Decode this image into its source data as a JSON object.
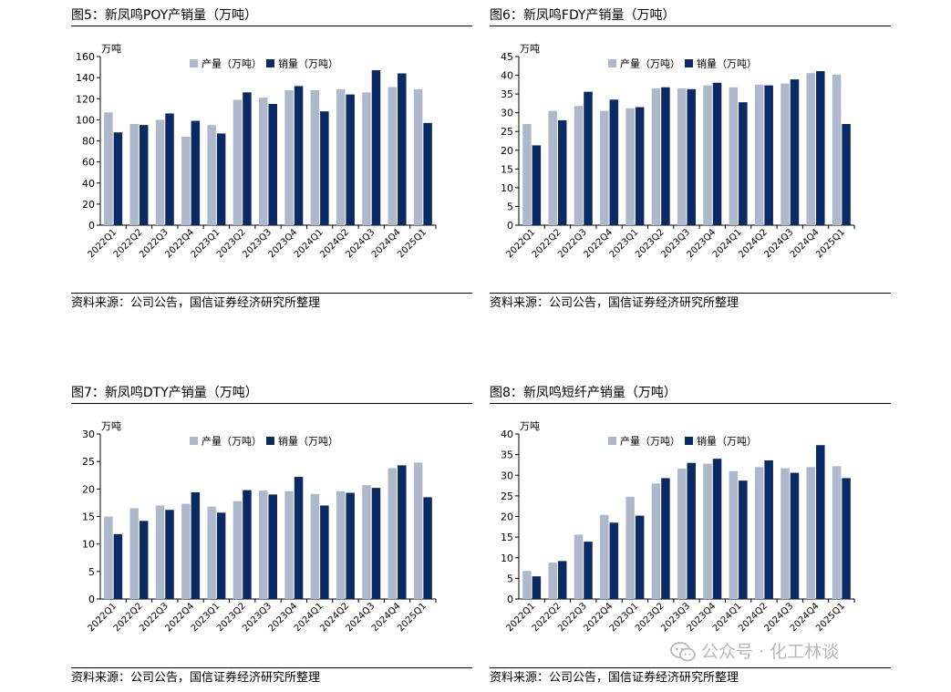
{
  "charts": [
    {
      "id": "poy",
      "title": "图5：新凤鸣POY产销量（万吨）",
      "source": "资料来源：公司公告，国信证券经济研究所整理",
      "unit": "万吨",
      "legend": [
        "产量（万吨）",
        "销量（万吨）"
      ]
    },
    {
      "id": "fdy",
      "title": "图6：新凤鸣FDY产销量（万吨）",
      "source": "资料来源：公司公告，国信证券经济研究所整理",
      "unit": "万吨",
      "legend": [
        "产量（万吨）",
        "销量（万吨）"
      ]
    },
    {
      "id": "dty",
      "title": "图7：新凤鸣DTY产销量（万吨）",
      "source": "资料来源：公司公告，国信证券经济研究所整理",
      "unit": "万吨",
      "legend": [
        "产量（万吨）",
        "销量（万吨）"
      ]
    },
    {
      "id": "staple",
      "title": "图8：新凤鸣短纤产销量（万吨）",
      "source": "资料来源：公司公告，国信证券经济研究所整理",
      "unit": "万吨",
      "legend": [
        "产量（万吨）",
        "销量（万吨）"
      ]
    }
  ],
  "watermark": "公众号 · 化工林谈",
  "colors": {
    "production": "#adb9ca",
    "sales": "#0b2a64",
    "axis": "#000000"
  },
  "chart_data": [
    {
      "type": "bar",
      "categories": [
        "2022Q1",
        "2022Q2",
        "2022Q3",
        "2022Q4",
        "2023Q1",
        "2023Q2",
        "2023Q3",
        "2023Q4",
        "2024Q1",
        "2024Q2",
        "2024Q3",
        "2024Q4",
        "2025Q1"
      ],
      "series": [
        {
          "name": "产量（万吨）",
          "values": [
            107,
            96,
            100,
            84,
            95,
            119,
            121,
            128,
            128,
            129,
            126,
            131,
            129
          ]
        },
        {
          "name": "销量（万吨）",
          "values": [
            88,
            95,
            106,
            99,
            87,
            126,
            115,
            132,
            108,
            124,
            147,
            144,
            97
          ]
        }
      ],
      "ylim": [
        0,
        160
      ],
      "yticks": [
        0,
        20,
        40,
        60,
        80,
        100,
        120,
        140,
        160
      ],
      "ylabel": "万吨",
      "title": "新凤鸣POY产销量（万吨）",
      "legend": "top-center",
      "grid": false
    },
    {
      "type": "bar",
      "categories": [
        "2022Q1",
        "2022Q2",
        "2022Q3",
        "2022Q4",
        "2023Q1",
        "2023Q2",
        "2023Q3",
        "2023Q4",
        "2024Q1",
        "2024Q2",
        "2024Q3",
        "2024Q4",
        "2025Q1"
      ],
      "series": [
        {
          "name": "产量（万吨）",
          "values": [
            27,
            30.5,
            31.8,
            30.5,
            31.2,
            36.5,
            36.5,
            37.3,
            36.8,
            37.5,
            37.8,
            40.6,
            40.2
          ]
        },
        {
          "name": "销量（万吨）",
          "values": [
            21.3,
            28,
            35.6,
            33.5,
            31.5,
            36.8,
            36.3,
            38,
            32.8,
            37.3,
            38.9,
            41.1,
            27
          ]
        }
      ],
      "ylim": [
        0,
        45
      ],
      "yticks": [
        0,
        5,
        10,
        15,
        20,
        25,
        30,
        35,
        40,
        45
      ],
      "ylabel": "万吨",
      "title": "新凤鸣FDY产销量（万吨）",
      "legend": "top-center",
      "grid": false
    },
    {
      "type": "bar",
      "categories": [
        "2022Q1",
        "2022Q2",
        "2022Q3",
        "2022Q4",
        "2023Q1",
        "2023Q2",
        "2023Q3",
        "2023Q4",
        "2024Q1",
        "2024Q2",
        "2024Q3",
        "2024Q4",
        "2025Q1"
      ],
      "series": [
        {
          "name": "产量（万吨）",
          "values": [
            15,
            16.5,
            17,
            17.3,
            16.8,
            17.8,
            19.7,
            19.6,
            19.1,
            19.6,
            20.7,
            23.8,
            24.8
          ]
        },
        {
          "name": "销量（万吨）",
          "values": [
            11.8,
            14.2,
            16.2,
            19.4,
            15.7,
            19.8,
            19,
            22.2,
            17,
            19.3,
            20.2,
            24.3,
            18.5
          ]
        }
      ],
      "ylim": [
        0,
        30
      ],
      "yticks": [
        0,
        5,
        10,
        15,
        20,
        25,
        30
      ],
      "ylabel": "万吨",
      "title": "新凤鸣DTY产销量（万吨）",
      "legend": "top-center",
      "grid": false
    },
    {
      "type": "bar",
      "categories": [
        "2022Q1",
        "2022Q2",
        "2022Q3",
        "2022Q4",
        "2023Q1",
        "2023Q2",
        "2023Q3",
        "2023Q4",
        "2024Q1",
        "2024Q2",
        "2024Q3",
        "2024Q4",
        "2025Q1"
      ],
      "series": [
        {
          "name": "产量（万吨）",
          "values": [
            6.8,
            8.8,
            15.6,
            20.4,
            24.8,
            28,
            31.6,
            32.8,
            31,
            32,
            31.7,
            32,
            32.2
          ]
        },
        {
          "name": "销量（万吨）",
          "values": [
            5.5,
            9.2,
            13.9,
            18.5,
            20.2,
            29.3,
            33,
            34,
            28.7,
            33.6,
            30.6,
            37.3,
            29.3
          ]
        }
      ],
      "ylim": [
        0,
        40
      ],
      "yticks": [
        0,
        5,
        10,
        15,
        20,
        25,
        30,
        35,
        40
      ],
      "ylabel": "万吨",
      "title": "新凤鸣短纤产销量（万吨）",
      "legend": "top-center",
      "grid": false
    }
  ]
}
